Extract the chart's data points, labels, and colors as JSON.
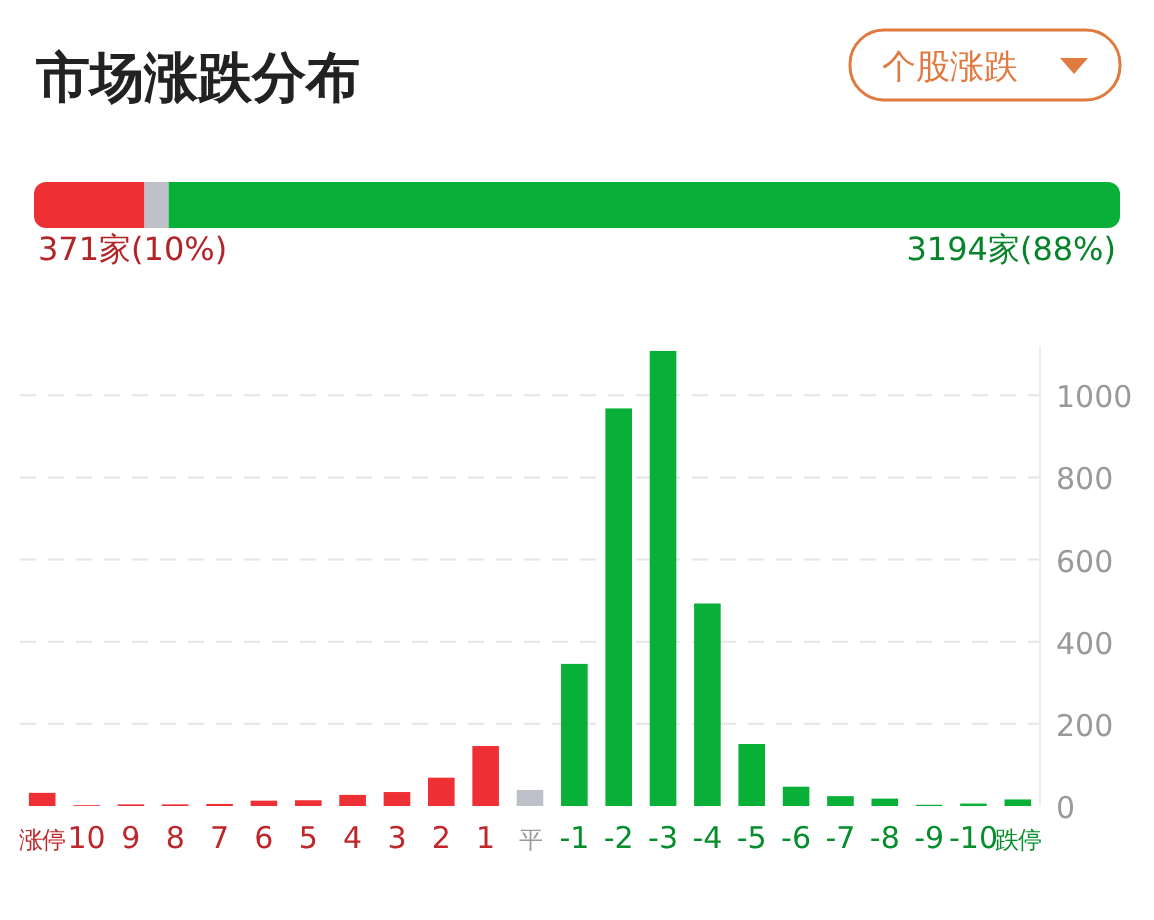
{
  "chart_data": [
    {
      "type": "bar",
      "title": "市场涨跌分布",
      "orientation": "horizontal",
      "stacked": true,
      "annotations": [
        "个股涨跌"
      ],
      "categories": [
        null
      ],
      "series": [
        {
          "color": "#ee3035",
          "values": [
            371
          ],
          "value_labels": [
            "371家(10%)"
          ]
        },
        {
          "color": "#bfc1c8",
          "values": [
            81
          ],
          "value_labels": [
            null
          ]
        },
        {
          "color": "#08b037",
          "values": [
            3194
          ],
          "value_labels": [
            "3194家(88%)"
          ]
        }
      ]
    },
    {
      "type": "bar",
      "categories": [
        "涨停",
        "10",
        "9",
        "8",
        "7",
        "6",
        "5",
        "4",
        "3",
        "2",
        "1",
        "平",
        "-1",
        "-2",
        "-3",
        "-4",
        "-5",
        "-6",
        "-7",
        "-8",
        "-9",
        "-10",
        "跌停"
      ],
      "values": [
        32,
        2,
        4,
        4,
        5,
        13,
        14,
        27,
        34,
        69,
        146,
        39,
        346,
        968,
        1108,
        493,
        151,
        47,
        24,
        18,
        3,
        6,
        16
      ],
      "colors": [
        "#ee3035",
        "#ee3035",
        "#ee3035",
        "#ee3035",
        "#ee3035",
        "#ee3035",
        "#ee3035",
        "#ee3035",
        "#ee3035",
        "#ee3035",
        "#ee3035",
        "#bfc1c8",
        "#08b037",
        "#08b037",
        "#08b037",
        "#08b037",
        "#08b037",
        "#08b037",
        "#08b037",
        "#08b037",
        "#08b037",
        "#08b037",
        "#08b037"
      ],
      "ylim": [
        0,
        1120
      ],
      "yticks": [
        0,
        200,
        400,
        600,
        800,
        1000
      ],
      "grid": "y"
    }
  ]
}
